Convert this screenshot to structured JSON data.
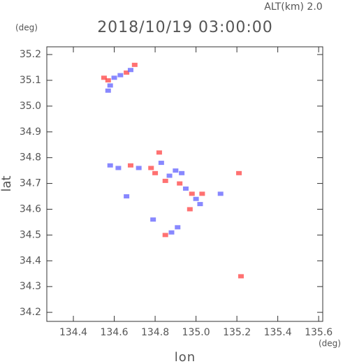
{
  "chart_data": {
    "type": "scatter",
    "title": "2018/10/19 03:00:00",
    "subtitle": "ALT(km) 2.0",
    "y_unit": "(deg)",
    "x_unit": "(deg)",
    "x_label": "lon",
    "y_label": "lat",
    "xlim": [
      134.27,
      135.62
    ],
    "ylim": [
      34.165,
      35.23
    ],
    "xticks": [
      134.4,
      134.6,
      134.8,
      135.0,
      135.2,
      135.4,
      135.6
    ],
    "yticks": [
      34.2,
      34.3,
      34.4,
      34.5,
      34.6,
      34.7,
      34.8,
      34.9,
      35.0,
      35.1,
      35.2
    ],
    "series": [
      {
        "color": "#ff4d4d",
        "x": [
          134.57,
          134.55,
          134.66,
          134.7,
          134.68,
          134.78,
          134.8,
          134.82,
          134.92,
          134.98,
          135.03,
          134.97,
          134.85,
          135.21,
          134.85,
          135.22
        ],
        "values": [
          35.1,
          35.11,
          35.13,
          35.16,
          34.77,
          34.76,
          34.74,
          34.82,
          34.7,
          34.66,
          34.66,
          34.6,
          34.71,
          34.74,
          34.5,
          34.34
        ]
      },
      {
        "color": "#6a6aff",
        "x": [
          134.58,
          134.6,
          134.68,
          134.63,
          134.57,
          134.58,
          134.62,
          134.72,
          134.83,
          134.87,
          134.9,
          134.93,
          134.95,
          135.0,
          135.02,
          134.66,
          134.88,
          134.91,
          135.12,
          134.79
        ],
        "values": [
          35.08,
          35.11,
          35.14,
          35.12,
          35.06,
          34.77,
          34.76,
          34.76,
          34.78,
          34.73,
          34.75,
          34.74,
          34.68,
          34.64,
          34.62,
          34.65,
          34.51,
          34.53,
          34.66,
          34.56
        ]
      }
    ]
  }
}
